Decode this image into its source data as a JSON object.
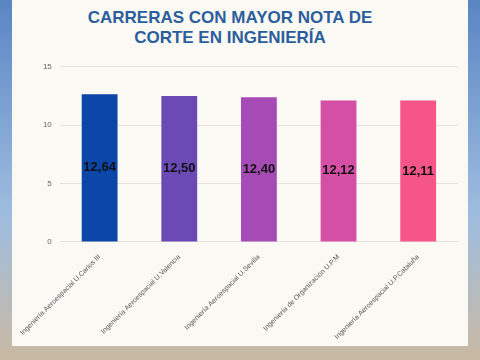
{
  "chart_data": {
    "type": "bar",
    "title": "CARRERAS CON MAYOR NOTA DE CORTE EN INGENIERÍA",
    "categories": [
      "Ingeniería Aeroespacial U.Carlos III",
      "Ingeniería Aeroespacial U.Valencia",
      "Ingeniería Aeroespacial U.Sevilla",
      "Ingeniería de Organización U.P.M",
      "Ingeniería Aeroespacial U.P.Cataluña"
    ],
    "values": [
      12.64,
      12.5,
      12.4,
      12.12,
      12.11
    ],
    "value_labels": [
      "12,64",
      "12,50",
      "12,40",
      "12,12",
      "12,11"
    ],
    "colors": [
      "#0b46a8",
      "#6b4ab6",
      "#a64bb6",
      "#d64fa6",
      "#f6558a"
    ],
    "ylim": [
      0,
      15
    ],
    "yticks": [
      0,
      5,
      10,
      15
    ],
    "grid": true,
    "data_labels": true
  }
}
